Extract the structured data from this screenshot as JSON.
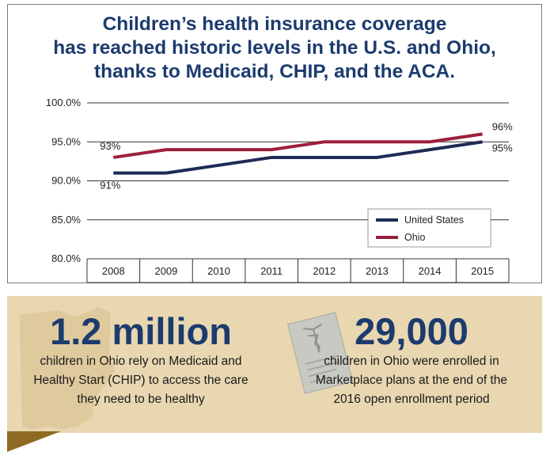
{
  "title_lines": [
    "Children’s health insurance coverage",
    "has reached historic levels in the U.S. and Ohio,",
    "thanks to Medicaid, CHIP, and the ACA."
  ],
  "chart_data": {
    "type": "line",
    "x": [
      "2008",
      "2009",
      "2010",
      "2011",
      "2012",
      "2013",
      "2014",
      "2015"
    ],
    "series": [
      {
        "name": "United States",
        "color": "#1c2a55",
        "values": [
          91,
          91,
          92,
          93,
          93,
          93,
          94,
          95
        ]
      },
      {
        "name": "Ohio",
        "color": "#9c1f3e",
        "values": [
          93,
          94,
          94,
          94,
          95,
          95,
          95,
          96
        ]
      }
    ],
    "ylim": [
      80,
      100
    ],
    "yticks": [
      80,
      85,
      90,
      95,
      100
    ],
    "ytick_labels": [
      "80.0%",
      "85.0%",
      "90.0%",
      "95.0%",
      "100.0%"
    ],
    "data_labels": [
      {
        "series": "Ohio",
        "x": "2008",
        "text": "93%"
      },
      {
        "series": "United States",
        "x": "2008",
        "text": "91%"
      },
      {
        "series": "Ohio",
        "x": "2015",
        "text": "96%"
      },
      {
        "series": "United States",
        "x": "2015",
        "text": "95%"
      }
    ],
    "grid": "horizontal",
    "legend": "bottom-right"
  },
  "stats": [
    {
      "number": "1.2 million",
      "lines": [
        "children in Ohio rely on Medicaid and",
        "Healthy Start (CHIP) to access the care",
        "they need to be healthy"
      ]
    },
    {
      "number": "29,000",
      "lines": [
        "children in Ohio were enrolled in",
        "Marketplace plans at the end of the",
        "2016 open enrollment period"
      ]
    }
  ],
  "colors": {
    "title": "#1c3b6e",
    "panel_bg": "#e8d7b1",
    "ribbon": "#8e6a22"
  },
  "icons": [
    "ohio-state-outline-icon",
    "medical-document-icon"
  ]
}
